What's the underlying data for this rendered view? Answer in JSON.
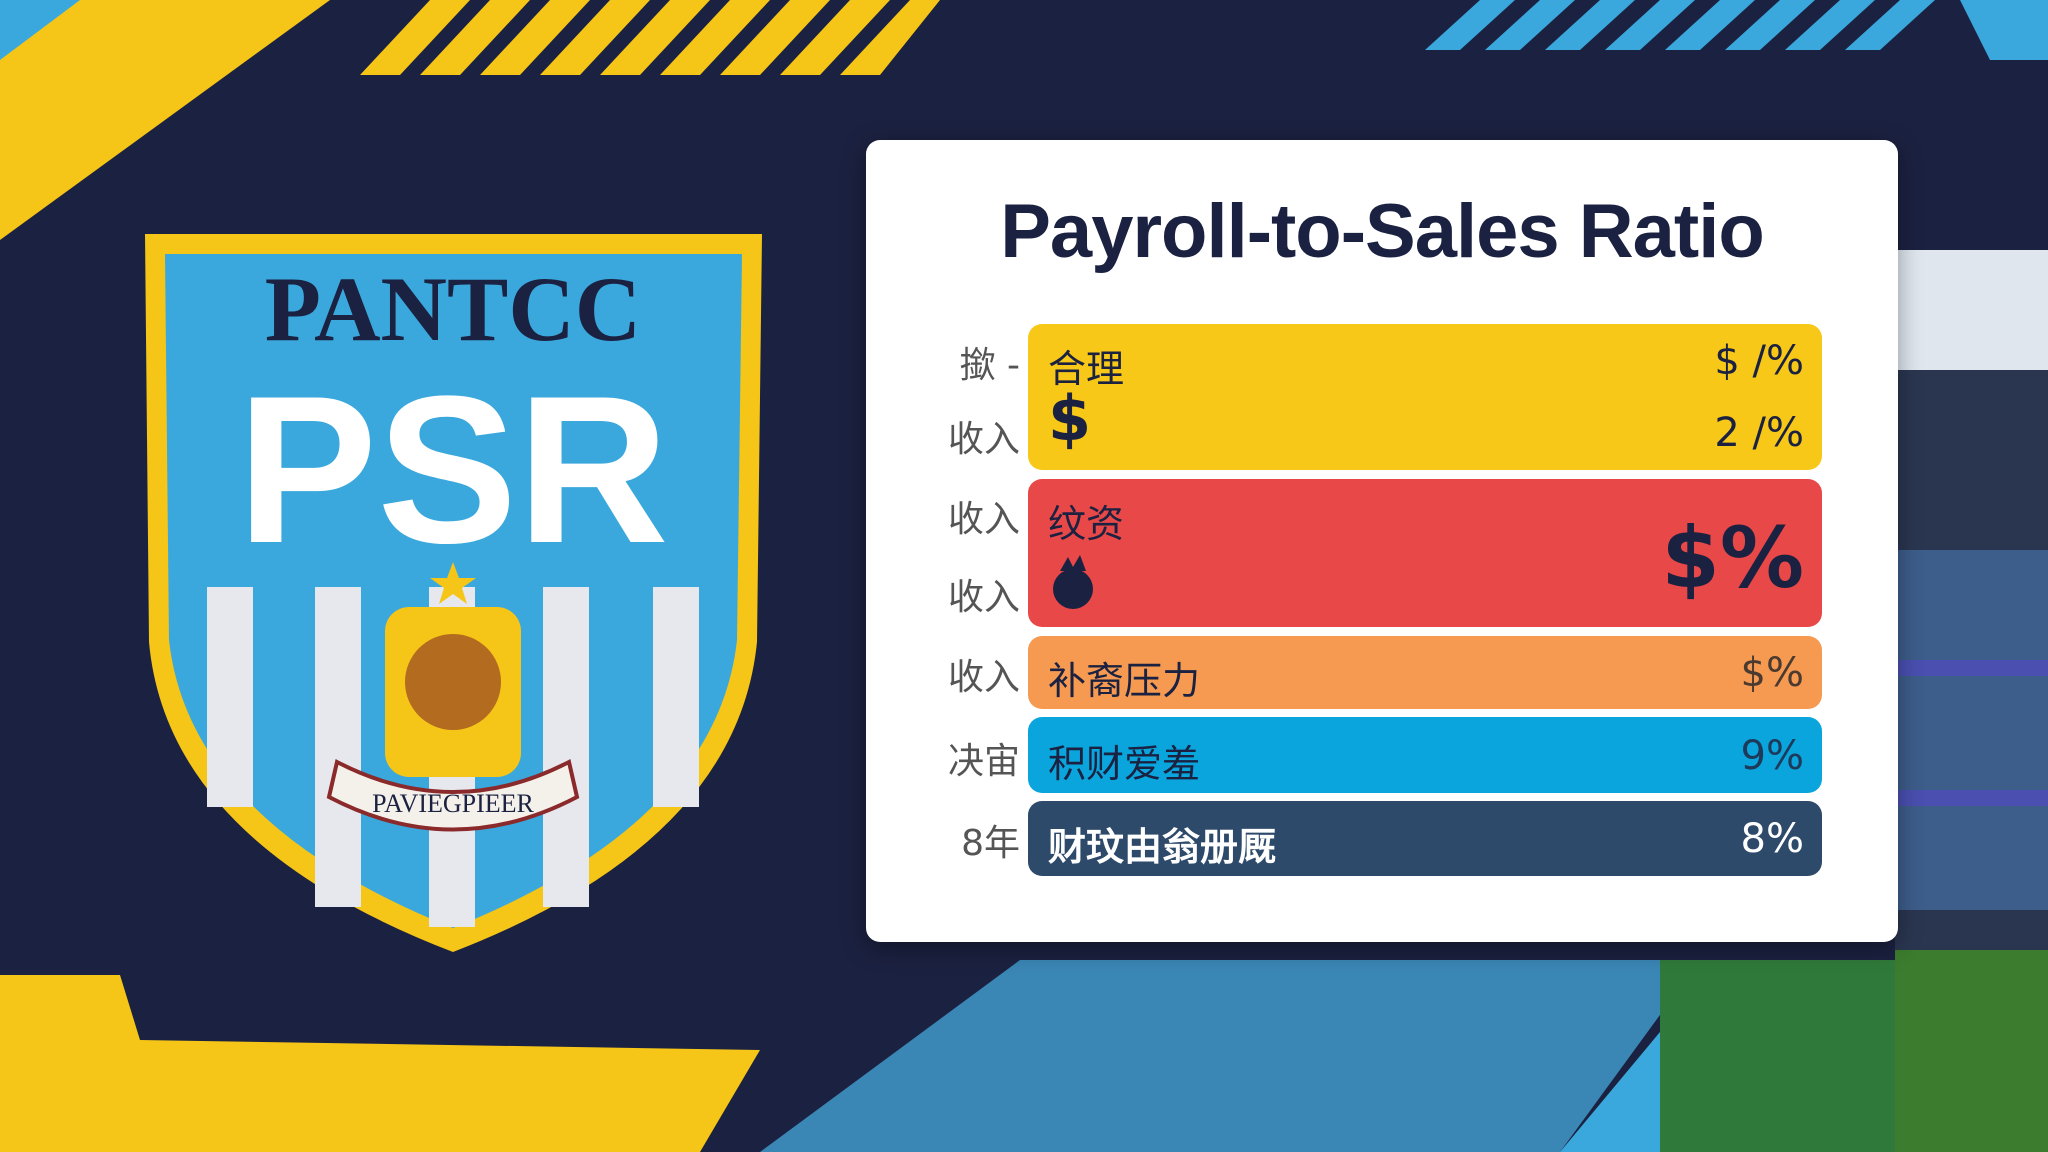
{
  "colors": {
    "navy": "#1b2140",
    "yellow": "#f5c518",
    "sky": "#3aa8dc",
    "red": "#e94848",
    "orange": "#f59a4e",
    "blue": "#0ea5dc",
    "dark_blue": "#2c4a6b"
  },
  "crest": {
    "top_text": "PANTCC",
    "main_text": "PSR",
    "banner_text": "PAVIEGPIEER"
  },
  "card": {
    "title": "Payroll-to-Sales Ratio",
    "rows": [
      {
        "labels": [
          "撳 -",
          "收入"
        ],
        "name": "合理",
        "icon": "dollar-icon",
        "icon_text": "$",
        "values": [
          "$ /%",
          "2 /%"
        ],
        "color": "#f7c817"
      },
      {
        "labels": [
          "收入",
          "收入"
        ],
        "name": "纹资",
        "icon": "lion-icon",
        "values": [
          "$%"
        ],
        "color": "#e84848"
      },
      {
        "labels": [
          "收入"
        ],
        "name": "补裔压力",
        "values": [
          "$%"
        ],
        "color": "#f69a52"
      },
      {
        "labels": [
          "决宙"
        ],
        "name": "积财爱羞",
        "values": [
          "9%"
        ],
        "color": "#0aa5dc"
      },
      {
        "labels": [
          "8年"
        ],
        "name": "财玟由翁册厩",
        "values": [
          "8%"
        ],
        "color": "#2d4a6a"
      }
    ]
  }
}
